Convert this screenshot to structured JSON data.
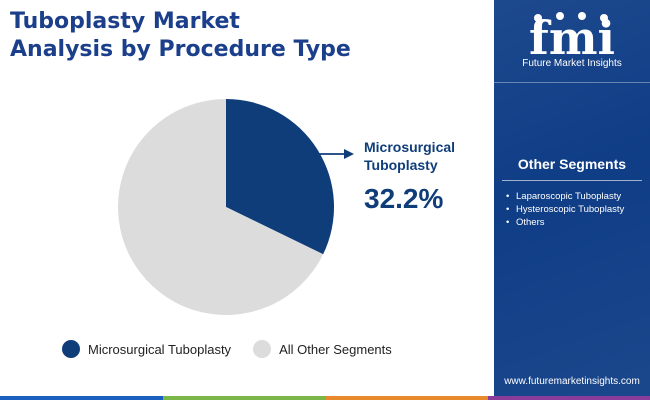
{
  "title": [
    "Tuboplasty Market",
    "Analysis by Procedure Type"
  ],
  "callout": {
    "label_lines": [
      "Microsurgical",
      "Tuboplasty"
    ],
    "value": "32.2%"
  },
  "legend": [
    {
      "label": "Microsurgical Tuboplasty",
      "color": "#0f3d7a"
    },
    {
      "label": "All Other Segments",
      "color": "#dcdcdc"
    }
  ],
  "sidebar": {
    "logo_text": "fmi",
    "logo_caption": "Future Market Insights",
    "other_segments_title": "Other Segments",
    "other_segments": [
      "Laparoscopic Tuboplasty",
      "Hysteroscopic Tuboplasty",
      "Others"
    ],
    "bullet": "•",
    "website": "www.futuremarketinsights.com"
  },
  "colors": {
    "title": "#1b3f8b",
    "accent_dark_blue": "#0f3d7a",
    "light_gray": "#dcdcdc",
    "sidebar_bg": "#0f3d86",
    "bottom_bar": [
      "#1b5fbf",
      "#7ab648",
      "#e8892c",
      "#8a3c9a"
    ]
  },
  "chart_data": {
    "type": "pie",
    "title": "Tuboplasty Market Analysis by Procedure Type",
    "slices": [
      {
        "label": "Microsurgical Tuboplasty",
        "value": 32.2,
        "color": "#0f3d7a"
      },
      {
        "label": "All Other Segments",
        "value": 67.8,
        "color": "#dcdcdc"
      }
    ],
    "start_angle_deg": 0,
    "direction": "clockwise",
    "data_labels": [
      {
        "label": "Microsurgical Tuboplasty",
        "text": "32.2%"
      }
    ],
    "legend_position": "bottom"
  }
}
